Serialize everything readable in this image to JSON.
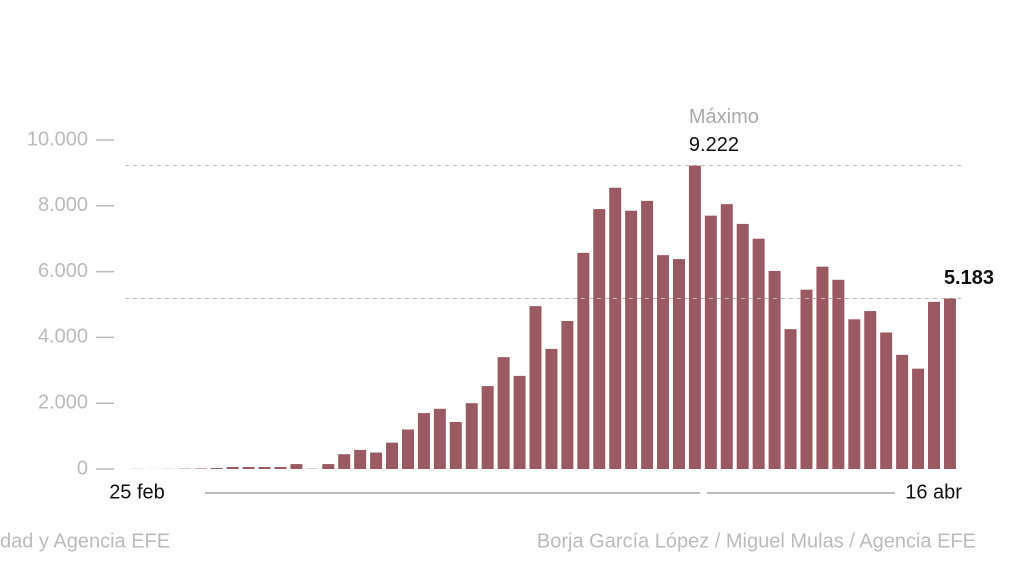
{
  "chart_data": {
    "type": "bar",
    "categories": [
      "25 feb",
      null,
      null,
      null,
      null,
      null,
      null,
      null,
      null,
      null,
      null,
      null,
      null,
      null,
      null,
      null,
      null,
      null,
      null,
      null,
      null,
      null,
      null,
      null,
      null,
      null,
      null,
      null,
      null,
      null,
      null,
      null,
      null,
      null,
      null,
      null,
      null,
      null,
      null,
      null,
      null,
      null,
      null,
      null,
      null,
      null,
      null,
      null,
      null,
      null,
      null,
      "16 abr"
    ],
    "values": [
      3,
      2,
      5,
      10,
      15,
      30,
      60,
      60,
      60,
      60,
      150,
      10,
      150,
      450,
      580,
      500,
      800,
      1200,
      1700,
      1830,
      1430,
      2000,
      2520,
      3400,
      2830,
      4950,
      3650,
      4500,
      6570,
      7900,
      8550,
      7850,
      8150,
      6500,
      6380,
      9222,
      7700,
      8050,
      7450,
      7000,
      6020,
      4250,
      5450,
      6150,
      5750,
      4550,
      4800,
      4150,
      3470,
      3050,
      5080,
      5183
    ],
    "value_labels": [
      null,
      null,
      null,
      null,
      null,
      null,
      null,
      null,
      null,
      null,
      null,
      null,
      null,
      null,
      null,
      null,
      null,
      null,
      null,
      null,
      null,
      null,
      null,
      null,
      null,
      null,
      null,
      null,
      null,
      null,
      null,
      null,
      null,
      null,
      null,
      "9.222",
      null,
      null,
      null,
      null,
      null,
      null,
      null,
      null,
      null,
      null,
      null,
      null,
      null,
      null,
      null,
      "5.183"
    ],
    "annotation": "Máximo",
    "color": "#9b5a63",
    "ylim": [
      0,
      10000
    ],
    "yticks": [
      0,
      {
        "value": 2000,
        "label": "2.000"
      },
      {
        "value": 4000,
        "label": "4.000"
      },
      {
        "value": 6000,
        "label": "6.000"
      },
      {
        "value": 8000,
        "label": "8.000"
      },
      {
        "value": 10000,
        "label": "10.000"
      }
    ],
    "source": "dad y Agencia EFE",
    "credit": "Borja García López / Miguel Mulas / Agencia EFE"
  }
}
